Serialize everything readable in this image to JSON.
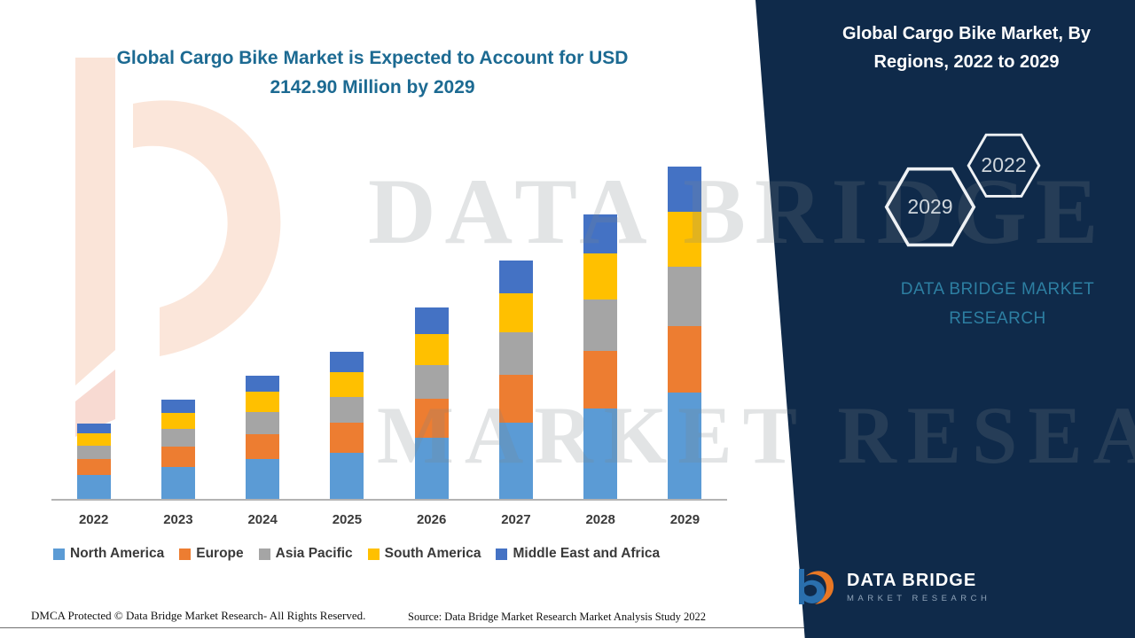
{
  "main": {
    "headline": "Global Cargo Bike Market is Expected to Account for USD 2142.90 Million by 2029",
    "watermark": {
      "line1": "DATA BRIDGE",
      "line2": "MARKET RESEARCH"
    },
    "footer": {
      "dmca": "DMCA Protected © Data Bridge Market Research- All Rights Reserved.",
      "source": "Source: Data Bridge Market Research Market Analysis Study 2022"
    }
  },
  "side_panel": {
    "title": "Global Cargo Bike Market, By Regions, 2022 to 2029",
    "hexagons": [
      "2029",
      "2022"
    ],
    "brand_text": "DATA BRIDGE MARKET RESEARCH",
    "logo": {
      "name": "DATA BRIDGE",
      "subtitle": "MARKET RESEARCH"
    },
    "background": "#0f2a4a",
    "accent": "#2d7fa2"
  },
  "chart_data": {
    "type": "bar",
    "stacked": true,
    "title": "Global Cargo Bike Market, By Regions, 2022 to 2029",
    "unit": "USD Million",
    "categories": [
      "2022",
      "2023",
      "2024",
      "2025",
      "2026",
      "2027",
      "2028",
      "2029"
    ],
    "series": [
      {
        "name": "North America",
        "color": "#5b9bd5",
        "values": [
          155,
          205,
          255,
          300,
          395,
          490,
          585,
          685
        ]
      },
      {
        "name": "Europe",
        "color": "#ed7d31",
        "values": [
          100,
          130,
          160,
          190,
          250,
          310,
          370,
          430
        ]
      },
      {
        "name": "Asia Pacific",
        "color": "#a5a5a5",
        "values": [
          90,
          115,
          145,
          170,
          220,
          275,
          330,
          385
        ]
      },
      {
        "name": "South America",
        "color": "#ffc000",
        "values": [
          80,
          105,
          130,
          155,
          200,
          250,
          300,
          350
        ]
      },
      {
        "name": "Middle East and Africa",
        "color": "#4472c4",
        "values": [
          63,
          85,
          107,
          133,
          169,
          212,
          249,
          292.9
        ]
      }
    ],
    "totals": [
      488,
      640,
      797,
      948,
      1234,
      1537,
      1834,
      2142.9
    ],
    "xlabel": "",
    "ylabel": "",
    "ylim": [
      0,
      2200
    ],
    "grid": false,
    "y_axis_visible": false,
    "legend_position": "bottom"
  }
}
